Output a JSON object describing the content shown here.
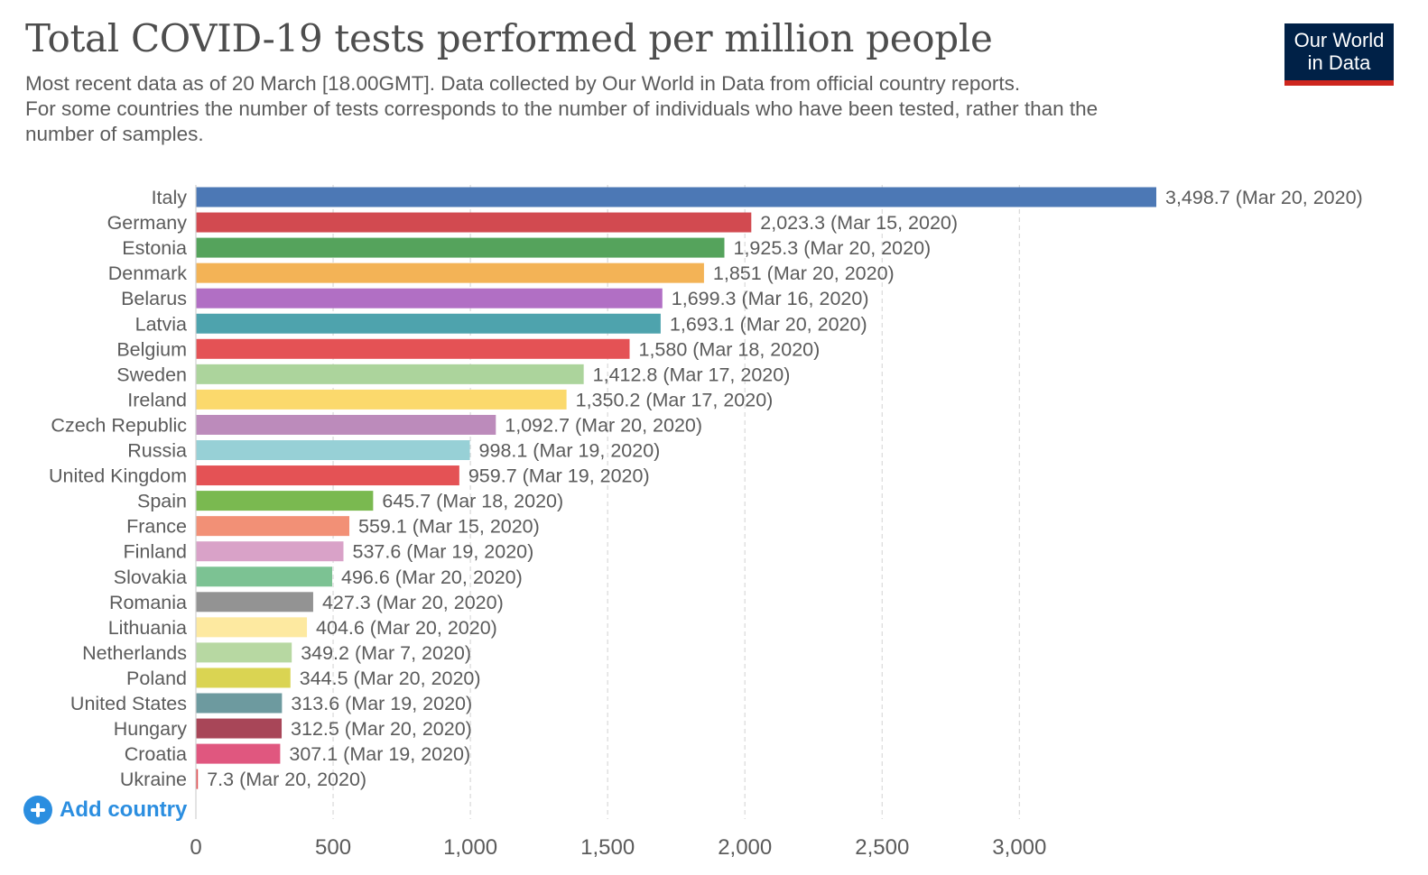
{
  "header": {
    "title": "Total COVID-19 tests performed per million people",
    "subtitle_lines": [
      "Most recent data as of 20 March [18.00GMT]. Data collected by Our World in Data from official country reports.",
      "For some countries the number of tests corresponds to the number of individuals who have been tested, rather than the",
      "number of samples."
    ]
  },
  "logo": {
    "line1": "Our World",
    "line2": "in Data"
  },
  "add_country": {
    "label": "Add country",
    "icon": "plus-circle-icon"
  },
  "colors": {
    "logo_bg": "#002147",
    "logo_accent": "#ce261e",
    "add_button": "#2b8ee0"
  },
  "chart_data": {
    "type": "bar",
    "orientation": "horizontal",
    "title": "Total COVID-19 tests performed per million people",
    "xlabel": "",
    "ylabel": "",
    "xlim": [
      0,
      3498.7
    ],
    "xticks": [
      {
        "value": 0,
        "label": "0"
      },
      {
        "value": 500,
        "label": "500"
      },
      {
        "value": 1000,
        "label": "1,000"
      },
      {
        "value": 1500,
        "label": "1,500"
      },
      {
        "value": 2000,
        "label": "2,000"
      },
      {
        "value": 2500,
        "label": "2,500"
      },
      {
        "value": 3000,
        "label": "3,000"
      }
    ],
    "grid": "vertical dashed",
    "bars": [
      {
        "category": "Italy",
        "value": 3498.7,
        "label": "3,498.7 (Mar 20, 2020)",
        "color": "#4c78b5"
      },
      {
        "category": "Germany",
        "value": 2023.3,
        "label": "2,023.3 (Mar 15, 2020)",
        "color": "#d24a50"
      },
      {
        "category": "Estonia",
        "value": 1925.3,
        "label": "1,925.3 (Mar 20, 2020)",
        "color": "#55a35c"
      },
      {
        "category": "Denmark",
        "value": 1851,
        "label": "1,851 (Mar 20, 2020)",
        "color": "#f3b356"
      },
      {
        "category": "Belarus",
        "value": 1699.3,
        "label": "1,699.3 (Mar 16, 2020)",
        "color": "#b16fc4"
      },
      {
        "category": "Latvia",
        "value": 1693.1,
        "label": "1,693.1 (Mar 20, 2020)",
        "color": "#4ea3ad"
      },
      {
        "category": "Belgium",
        "value": 1580,
        "label": "1,580 (Mar 18, 2020)",
        "color": "#e45255"
      },
      {
        "category": "Sweden",
        "value": 1412.8,
        "label": "1,412.8 (Mar 17, 2020)",
        "color": "#acd49c"
      },
      {
        "category": "Ireland",
        "value": 1350.2,
        "label": "1,350.2 (Mar 17, 2020)",
        "color": "#fbd96c"
      },
      {
        "category": "Czech Republic",
        "value": 1092.7,
        "label": "1,092.7 (Mar 20, 2020)",
        "color": "#bc8bbb"
      },
      {
        "category": "Russia",
        "value": 998.1,
        "label": "998.1 (Mar 19, 2020)",
        "color": "#97d0d6"
      },
      {
        "category": "United Kingdom",
        "value": 959.7,
        "label": "959.7 (Mar 19, 2020)",
        "color": "#e45255"
      },
      {
        "category": "Spain",
        "value": 645.7,
        "label": "645.7 (Mar 18, 2020)",
        "color": "#7ab950"
      },
      {
        "category": "France",
        "value": 559.1,
        "label": "559.1 (Mar 15, 2020)",
        "color": "#f29076"
      },
      {
        "category": "Finland",
        "value": 537.6,
        "label": "537.6 (Mar 19, 2020)",
        "color": "#d9a2c8"
      },
      {
        "category": "Slovakia",
        "value": 496.6,
        "label": "496.6 (Mar 20, 2020)",
        "color": "#7cc293"
      },
      {
        "category": "Romania",
        "value": 427.3,
        "label": "427.3 (Mar 20, 2020)",
        "color": "#939393"
      },
      {
        "category": "Lithuania",
        "value": 404.6,
        "label": "404.6 (Mar 20, 2020)",
        "color": "#fde9a0"
      },
      {
        "category": "Netherlands",
        "value": 349.2,
        "label": "349.2 (Mar 7, 2020)",
        "color": "#b7d8a2"
      },
      {
        "category": "Poland",
        "value": 344.5,
        "label": "344.5 (Mar 20, 2020)",
        "color": "#dad452"
      },
      {
        "category": "United States",
        "value": 313.6,
        "label": "313.6 (Mar 19, 2020)",
        "color": "#6d9a9f"
      },
      {
        "category": "Hungary",
        "value": 312.5,
        "label": "312.5 (Mar 20, 2020)",
        "color": "#a84658"
      },
      {
        "category": "Croatia",
        "value": 307.1,
        "label": "307.1 (Mar 19, 2020)",
        "color": "#e0577f"
      },
      {
        "category": "Ukraine",
        "value": 7.3,
        "label": "7.3 (Mar 20, 2020)",
        "color": "#e45255"
      }
    ]
  }
}
